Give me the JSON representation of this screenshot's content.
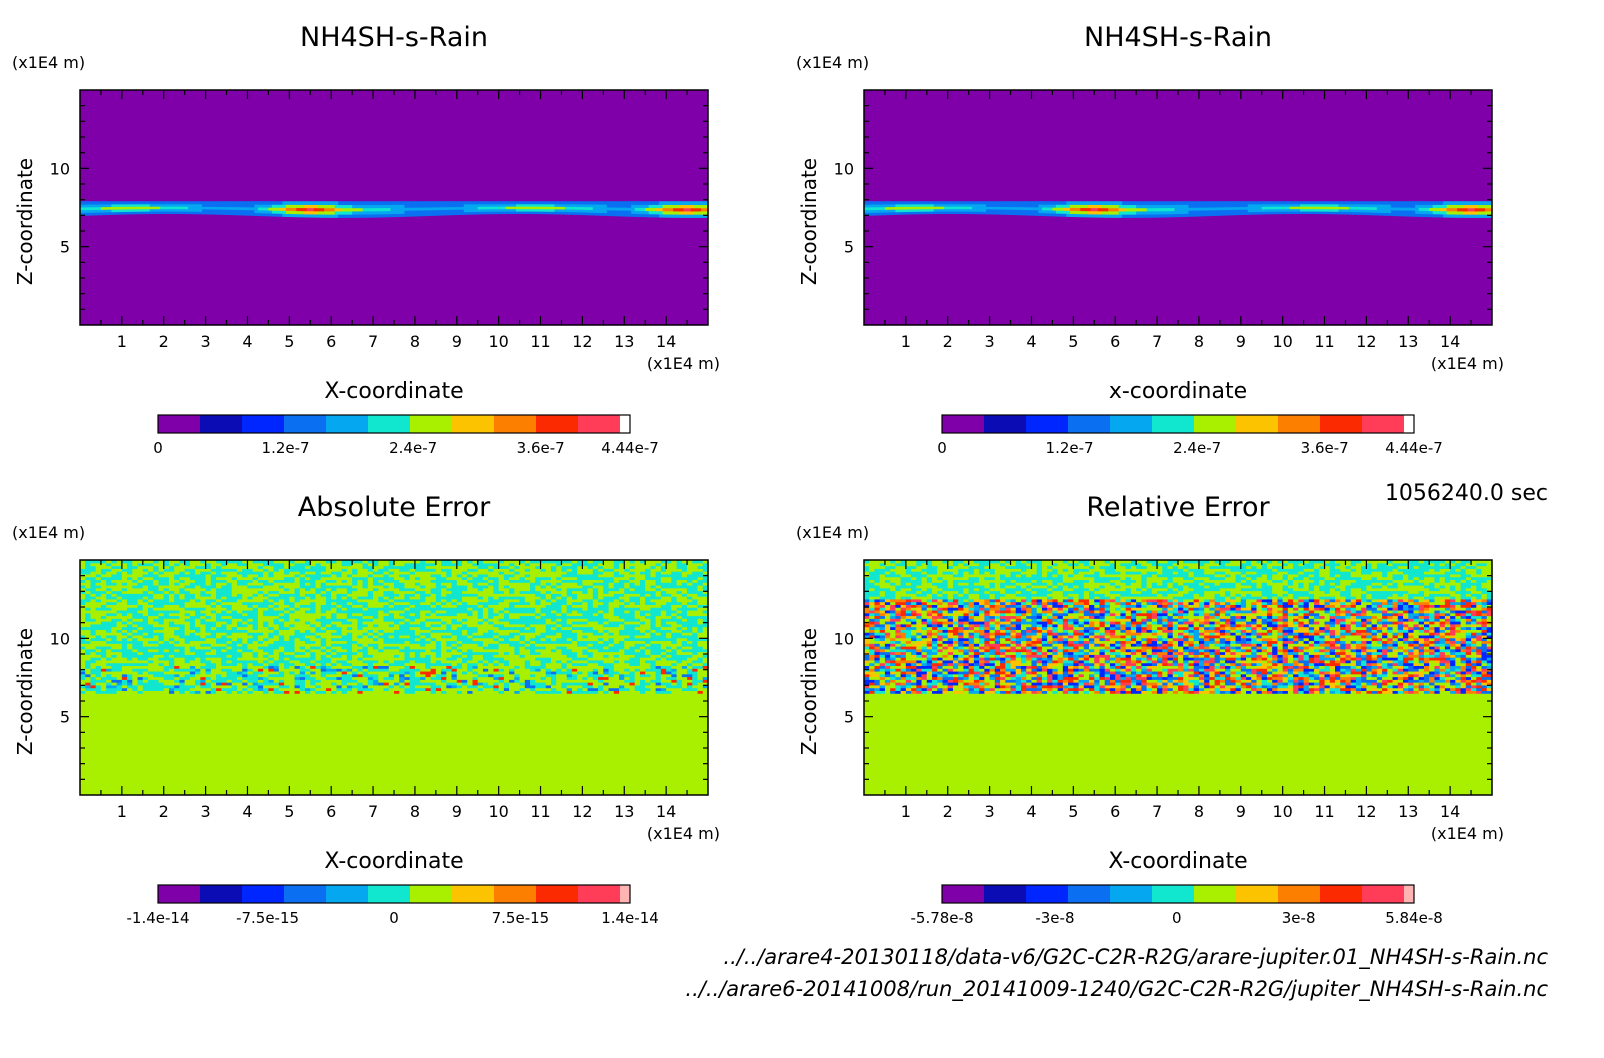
{
  "time_label": "1056240.0 sec",
  "files": {
    "line1": "../../arare4-20130118/data-v6/G2C-C2R-R2G/arare-jupiter.01_NH4SH-s-Rain.nc",
    "line2": "../../arare6-20141008/run_20141009-1240/G2C-C2R-R2G/jupiter_NH4SH-s-Rain.nc"
  },
  "chart_data": [
    {
      "type": "heatmap",
      "title": "NH4SH-s-Rain",
      "xlabel": "X-coordinate",
      "ylabel": "Z-coordinate",
      "x_unit": "(x1E4 m)",
      "y_unit": "(x1E4 m)",
      "xlim": [
        0,
        15
      ],
      "ylim": [
        0,
        15
      ],
      "x_ticks": [
        "1",
        "2",
        "3",
        "4",
        "5",
        "6",
        "7",
        "8",
        "9",
        "10",
        "11",
        "12",
        "13",
        "14"
      ],
      "y_ticks": [
        "5",
        "10"
      ],
      "colorbar": {
        "levels": 11,
        "colors": [
          "#7f00a8",
          "#0c0cb4",
          "#0026ff",
          "#0b6ff2",
          "#05a8f0",
          "#11e6cf",
          "#a8f000",
          "#fbc300",
          "#fc7f00",
          "#fc2a00",
          "#ff3d59",
          "#ffffff"
        ],
        "tick_labels": [
          "0",
          "1.2e-7",
          "2.4e-7",
          "3.6e-7",
          "4.44e-7"
        ],
        "min": 0,
        "max": 4.44e-07
      },
      "field": "band",
      "band": {
        "z_bottom": 7.0,
        "z_top": 7.9
      },
      "peaks_x": [
        5.5,
        14.5
      ]
    },
    {
      "type": "heatmap",
      "title": "NH4SH-s-Rain",
      "xlabel": "x-coordinate",
      "ylabel": "Z-coordinate",
      "x_unit": "(x1E4 m)",
      "y_unit": "(x1E4 m)",
      "xlim": [
        0,
        15
      ],
      "ylim": [
        0,
        15
      ],
      "x_ticks": [
        "1",
        "2",
        "3",
        "4",
        "5",
        "6",
        "7",
        "8",
        "9",
        "10",
        "11",
        "12",
        "13",
        "14"
      ],
      "y_ticks": [
        "5",
        "10"
      ],
      "colorbar": {
        "levels": 11,
        "colors": [
          "#7f00a8",
          "#0c0cb4",
          "#0026ff",
          "#0b6ff2",
          "#05a8f0",
          "#11e6cf",
          "#a8f000",
          "#fbc300",
          "#fc7f00",
          "#fc2a00",
          "#ff3d59",
          "#ffffff"
        ],
        "tick_labels": [
          "0",
          "1.2e-7",
          "2.4e-7",
          "3.6e-7",
          "4.44e-7"
        ],
        "min": 0,
        "max": 4.44e-07
      },
      "field": "band",
      "band": {
        "z_bottom": 7.0,
        "z_top": 7.9
      },
      "peaks_x": [
        5.5,
        14.5
      ]
    },
    {
      "type": "heatmap",
      "title": "Absolute Error",
      "xlabel": "X-coordinate",
      "ylabel": "Z-coordinate",
      "x_unit": "(x1E4 m)",
      "y_unit": "(x1E4 m)",
      "xlim": [
        0,
        15
      ],
      "ylim": [
        0,
        15
      ],
      "x_ticks": [
        "1",
        "2",
        "3",
        "4",
        "5",
        "6",
        "7",
        "8",
        "9",
        "10",
        "11",
        "12",
        "13",
        "14"
      ],
      "y_ticks": [
        "5",
        "10"
      ],
      "colorbar": {
        "levels": 11,
        "colors": [
          "#7f00a8",
          "#0c0cb4",
          "#0026ff",
          "#0b6ff2",
          "#05a8f0",
          "#11e6cf",
          "#a8f000",
          "#fbc300",
          "#fc7f00",
          "#fc2a00",
          "#ff3d59",
          "#ffb4b4"
        ],
        "tick_labels": [
          "-1.4e-14",
          "-7.5e-15",
          "0",
          "7.5e-15",
          "1.4e-14"
        ],
        "min": -1.4e-14,
        "max": 1.4e-14
      },
      "field": "abs_error",
      "noise_zmin": 6.5
    },
    {
      "type": "heatmap",
      "title": "Relative Error",
      "xlabel": "X-coordinate",
      "ylabel": "Z-coordinate",
      "x_unit": "(x1E4 m)",
      "y_unit": "(x1E4 m)",
      "xlim": [
        0,
        15
      ],
      "ylim": [
        0,
        15
      ],
      "x_ticks": [
        "1",
        "2",
        "3",
        "4",
        "5",
        "6",
        "7",
        "8",
        "9",
        "10",
        "11",
        "12",
        "13",
        "14"
      ],
      "y_ticks": [
        "5",
        "10"
      ],
      "colorbar": {
        "levels": 11,
        "colors": [
          "#7f00a8",
          "#0c0cb4",
          "#0026ff",
          "#0b6ff2",
          "#05a8f0",
          "#11e6cf",
          "#a8f000",
          "#fbc300",
          "#fc7f00",
          "#fc2a00",
          "#ff3d59",
          "#ffb4b4"
        ],
        "tick_labels": [
          "-5.78e-8",
          "-3e-8",
          "0",
          "3e-8",
          "5.84e-8"
        ],
        "min": -5.78e-08,
        "max": 5.84e-08
      },
      "field": "rel_error",
      "noise_zmin": 6.5,
      "strong_zmax": 12.5
    }
  ]
}
